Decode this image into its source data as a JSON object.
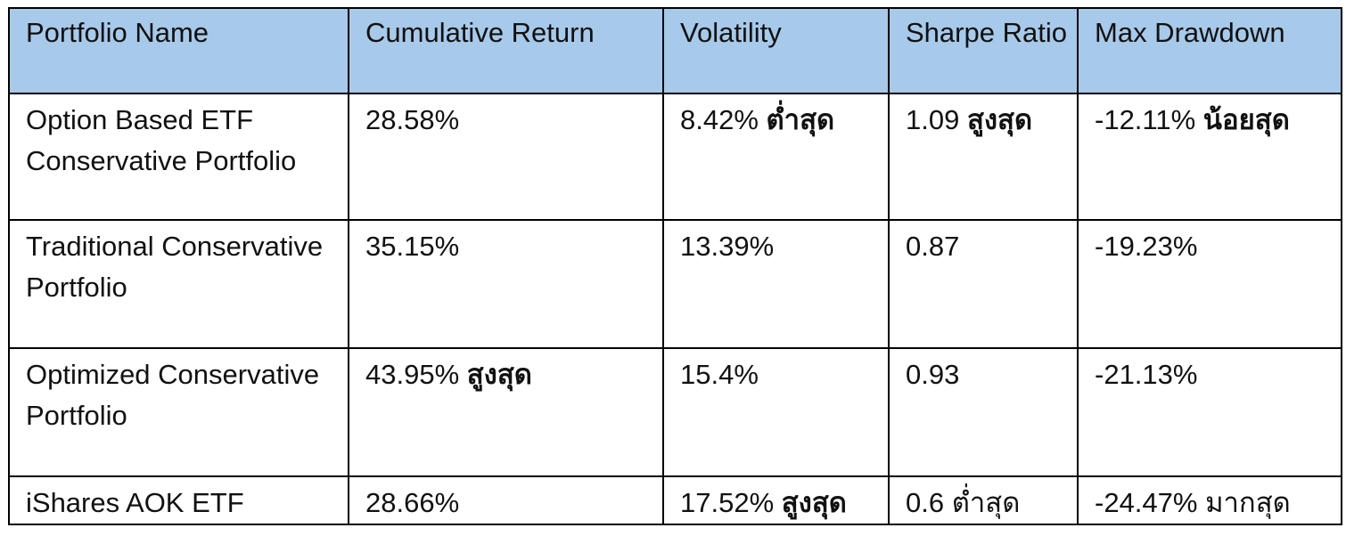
{
  "table": {
    "headers": [
      "Portfolio Name",
      "Cumulative Return",
      "Volatility",
      "Sharpe Ratio",
      "Max Drawdown"
    ],
    "header_bg": "#a7c9ea",
    "rows": [
      {
        "name": "Option Based ETF Conservative Portfolio",
        "cumulative_return": {
          "value": "28.58%",
          "note": ""
        },
        "volatility": {
          "value": "8.42%",
          "note": "ต่ำสุด"
        },
        "sharpe_ratio": {
          "value": "1.09",
          "note": "สูงสุด"
        },
        "max_drawdown": {
          "value": "-12.11%",
          "note": "น้อยสุด"
        }
      },
      {
        "name": "Traditional Conservative Portfolio",
        "cumulative_return": {
          "value": "35.15%",
          "note": ""
        },
        "volatility": {
          "value": "13.39%",
          "note": ""
        },
        "sharpe_ratio": {
          "value": "0.87",
          "note": ""
        },
        "max_drawdown": {
          "value": "-19.23%",
          "note": ""
        }
      },
      {
        "name": "Optimized Conservative Portfolio",
        "cumulative_return": {
          "value": "43.95%",
          "note": "สูงสุด"
        },
        "volatility": {
          "value": "15.4%",
          "note": ""
        },
        "sharpe_ratio": {
          "value": "0.93",
          "note": ""
        },
        "max_drawdown": {
          "value": "-21.13%",
          "note": ""
        }
      },
      {
        "name": "iShares AOK ETF",
        "cumulative_return": {
          "value": "28.66%",
          "note": ""
        },
        "volatility": {
          "value": "17.52%",
          "note": "สูงสุด"
        },
        "sharpe_ratio": {
          "value": "0.6",
          "note": "ต่ำสุด"
        },
        "max_drawdown": {
          "value": "-24.47%",
          "note": "มากสุด"
        }
      }
    ]
  }
}
